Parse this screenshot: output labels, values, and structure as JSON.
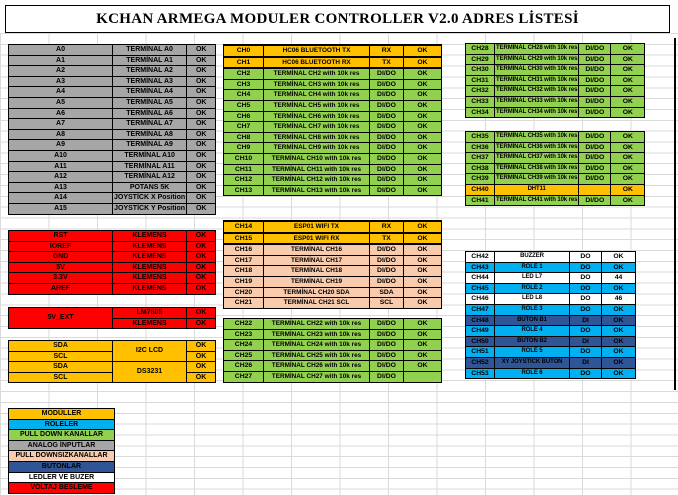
{
  "title": "KCHAN ARMEGA MODULER CONTROLLER V2.0 ADRES LİSTESİ",
  "colors": {
    "gray": "#A6A6A6",
    "green": "#92D050",
    "yellow": "#FFC000",
    "peach": "#F8CBAD",
    "blue": "#00B0F0",
    "darkblue": "#2F5597",
    "red": "#FF0000",
    "white": "#FFFFFF"
  },
  "tables": {
    "analog": {
      "rows": [
        {
          "color": "gray",
          "cells": [
            "A0",
            "TERMİNAL A0",
            "OK"
          ]
        },
        {
          "color": "gray",
          "cells": [
            "A1",
            "TERMİNAL A1",
            "OK"
          ]
        },
        {
          "color": "gray",
          "cells": [
            "A2",
            "TERMİNAL A2",
            "OK"
          ]
        },
        {
          "color": "gray",
          "cells": [
            "A3",
            "TERMİNAL A3",
            "OK"
          ]
        },
        {
          "color": "gray",
          "cells": [
            "A4",
            "TERMİNAL A4",
            "OK"
          ]
        },
        {
          "color": "gray",
          "cells": [
            "A5",
            "TERMİNAL A5",
            "OK"
          ]
        },
        {
          "color": "gray",
          "cells": [
            "A6",
            "TERMİNAL A6",
            "OK"
          ]
        },
        {
          "color": "gray",
          "cells": [
            "A7",
            "TERMİNAL A7",
            "OK"
          ]
        },
        {
          "color": "gray",
          "cells": [
            "A8",
            "TERMİNAL A8",
            "OK"
          ]
        },
        {
          "color": "gray",
          "cells": [
            "A9",
            "TERMİNAL A9",
            "OK"
          ]
        },
        {
          "color": "gray",
          "cells": [
            "A10",
            "TERMİNAL A10",
            "OK"
          ]
        },
        {
          "color": "gray",
          "cells": [
            "A11",
            "TERMİNAL A11",
            "OK"
          ]
        },
        {
          "color": "gray",
          "cells": [
            "A12",
            "TERMİNAL A12",
            "OK"
          ]
        },
        {
          "color": "gray",
          "cells": [
            "A13",
            "POTANS 5K",
            "OK"
          ]
        },
        {
          "color": "gray",
          "cells": [
            "A14",
            "JOYSTİCK X Position",
            "OK"
          ]
        },
        {
          "color": "gray",
          "cells": [
            "A15",
            "JOYSTİCK Y Position",
            "OK"
          ]
        }
      ]
    },
    "power1": {
      "rows": [
        {
          "color": "red",
          "cells": [
            "RST",
            "KLEMENS",
            "OK"
          ]
        },
        {
          "color": "red",
          "cells": [
            "IOREF",
            "KLEMENS",
            "OK"
          ]
        },
        {
          "color": "red",
          "cells": [
            "GND",
            "KLEMENS",
            "OK"
          ]
        },
        {
          "color": "red",
          "cells": [
            "5V",
            "KLEMENS",
            "OK"
          ]
        },
        {
          "color": "red",
          "cells": [
            "3.3V",
            "KLEMENS",
            "OK"
          ]
        },
        {
          "color": "red",
          "cells": [
            "AREF",
            "KLEMENS",
            "OK"
          ]
        }
      ]
    },
    "power2": {
      "rows": [
        {
          "color": "red",
          "cells": [
            {
              "t": "5V_EXT",
              "rs": 2
            },
            "LM7805",
            "OK"
          ]
        },
        {
          "color": "red",
          "cells": [
            "KLEMENS",
            "OK"
          ]
        }
      ]
    },
    "i2c": {
      "rows": [
        {
          "color": "yellow",
          "cells": [
            "SDA",
            {
              "t": "I2C LCD",
              "rs": 2
            },
            "OK"
          ]
        },
        {
          "color": "yellow",
          "cells": [
            "SCL",
            "OK"
          ]
        },
        {
          "color": "yellow",
          "cells": [
            "SDA",
            {
              "t": "DS3231",
              "rs": 2
            },
            "OK"
          ]
        },
        {
          "color": "yellow",
          "cells": [
            "SCL",
            "OK"
          ]
        }
      ]
    },
    "legend": {
      "rows": [
        {
          "color": "yellow",
          "cells": [
            "MODÜLLER"
          ]
        },
        {
          "color": "blue",
          "cells": [
            "RÖLELER"
          ]
        },
        {
          "color": "green",
          "cells": [
            "PULL DOWN KANALLAR"
          ]
        },
        {
          "color": "gray",
          "cells": [
            "ANALOG İNPUTLAR"
          ]
        },
        {
          "color": "peach",
          "cells": [
            "PULL DOWNSIZKANALLAR"
          ]
        },
        {
          "color": "darkblue",
          "cells": [
            "BUTONLAR"
          ]
        },
        {
          "color": "white",
          "cells": [
            "LEDLER  VE BUZER"
          ]
        },
        {
          "color": "red",
          "cells": [
            "VOLTAJ BESLEME"
          ]
        }
      ]
    },
    "mid1": {
      "rows": [
        {
          "color": "yellow",
          "thick": true,
          "cells": [
            "CH0",
            "HC06 BLUETOOTH TX",
            "RX",
            "OK"
          ]
        },
        {
          "color": "yellow",
          "thick": true,
          "cells": [
            "CH1",
            "HC06 BLUETOOTH RX",
            "TX",
            "OK"
          ]
        },
        {
          "color": "green",
          "cells": [
            "CH2",
            "TERMİNAL CH2 with 10k res",
            "DI/DO",
            "OK"
          ]
        },
        {
          "color": "green",
          "cells": [
            "CH3",
            "TERMİNAL CH3 with 10k res",
            "DI/DO",
            "OK"
          ]
        },
        {
          "color": "green",
          "cells": [
            "CH4",
            "TERMİNAL CH4 with 10k res",
            "DI/DO",
            "OK"
          ]
        },
        {
          "color": "green",
          "cells": [
            "CH5",
            "TERMİNAL CH5 with 10k res",
            "DI/DO",
            "OK"
          ]
        },
        {
          "color": "green",
          "cells": [
            "CH6",
            "TERMİNAL CH6 with 10k res",
            "DI/DO",
            "OK"
          ]
        },
        {
          "color": "green",
          "cells": [
            "CH7",
            "TERMİNAL CH7 with 10k res",
            "DI/DO",
            "OK"
          ]
        },
        {
          "color": "green",
          "cells": [
            "CH8",
            "TERMİNAL CH8 with 10k res",
            "DI/DO",
            "OK"
          ]
        },
        {
          "color": "green",
          "cells": [
            "CH9",
            "TERMİNAL CH9 with 10k res",
            "DI/DO",
            "OK"
          ]
        },
        {
          "color": "green",
          "cells": [
            "CH10",
            "TERMİNAL CH10 with 10k res",
            "DI/DO",
            "OK"
          ]
        },
        {
          "color": "green",
          "cells": [
            "CH11",
            "TERMİNAL CH11 with 10k res",
            "DI/DO",
            "OK"
          ]
        },
        {
          "color": "green",
          "cells": [
            "CH12",
            "TERMİNAL CH12 with 10k res",
            "DI/DO",
            "OK"
          ]
        },
        {
          "color": "green",
          "cells": [
            "CH13",
            "TERMİNAL CH13 with 10k res",
            "DI/DO",
            "OK"
          ]
        }
      ]
    },
    "mid2": {
      "rows": [
        {
          "color": "yellow",
          "thick": true,
          "cells": [
            "CH14",
            "ESP01 WIFI TX",
            "RX",
            "OK"
          ]
        },
        {
          "color": "yellow",
          "thick": true,
          "cells": [
            "CH15",
            "ESP01 WIFI RX",
            "TX",
            "OK"
          ]
        },
        {
          "color": "peach",
          "cells": [
            "CH16",
            "TERMİNAL CH16",
            "DI/DO",
            "OK"
          ]
        },
        {
          "color": "peach",
          "cells": [
            "CH17",
            "TERMİNAL CH17",
            "DI/DO",
            "OK"
          ]
        },
        {
          "color": "peach",
          "cells": [
            "CH18",
            "TERMİNAL CH18",
            "DI/DO",
            "OK"
          ]
        },
        {
          "color": "peach",
          "cells": [
            "CH19",
            "TERMİNAL CH19",
            "DI/DO",
            "OK"
          ]
        },
        {
          "color": "peach",
          "cells": [
            "CH20",
            "TERMİNAL CH20 SDA",
            "SDA",
            "OK"
          ]
        },
        {
          "color": "peach",
          "cells": [
            "CH21",
            "TERMİNAL CH21 SCL",
            "SCL",
            "OK"
          ]
        }
      ]
    },
    "mid3": {
      "rows": [
        {
          "color": "green",
          "cells": [
            "CH22",
            "TERMİNAL CH22 with 10k res",
            "DI/DO",
            "OK"
          ]
        },
        {
          "color": "green",
          "cells": [
            "CH23",
            "TERMİNAL CH23 with 10k res",
            "DI/DO",
            "OK"
          ]
        },
        {
          "color": "green",
          "cells": [
            "CH24",
            "TERMİNAL CH24 with 10k res",
            "DI/DO",
            "OK"
          ]
        },
        {
          "color": "green",
          "cells": [
            "CH25",
            "TERMİNAL CH25 with 10k res",
            "DI/DO",
            "OK"
          ]
        },
        {
          "color": "green",
          "cells": [
            "CH26",
            "TERMİNAL CH26 with 10k res",
            "DI/DO",
            "OK"
          ]
        },
        {
          "color": "green",
          "cells": [
            "CH27",
            "TERMİNAL CH27 with 10k res",
            "DI/DO",
            ""
          ]
        }
      ]
    },
    "right1": {
      "rows": [
        {
          "color": "green",
          "cells": [
            "CH28",
            "TERMİNAL CH28 with 10k res",
            "DI/DO",
            "OK"
          ]
        },
        {
          "color": "green",
          "cells": [
            "CH29",
            "TERMİNAL CH29 with 10k res",
            "DI/DO",
            "OK"
          ]
        },
        {
          "color": "green",
          "cells": [
            "CH30",
            "TERMİNAL CH30 with 10k res",
            "DI/DO",
            "OK"
          ]
        },
        {
          "color": "green",
          "cells": [
            "CH31",
            "TERMİNAL CH31 with 10k res",
            "DI/DO",
            "OK"
          ]
        },
        {
          "color": "green",
          "cells": [
            "CH32",
            "TERMİNAL CH32 with 10k res",
            "DI/DO",
            "OK"
          ]
        },
        {
          "color": "green",
          "cells": [
            "CH33",
            "TERMİNAL CH33 with 10k res",
            "DI/DO",
            "OK"
          ]
        },
        {
          "color": "green",
          "cells": [
            "CH34",
            "TERMİNAL CH34 with 10k res",
            "DI/DO",
            "OK"
          ]
        }
      ]
    },
    "right2": {
      "rows": [
        {
          "color": "green",
          "cells": [
            "CH35",
            "TERMİNAL CH35 with 10k res",
            "DI/DO",
            "OK"
          ]
        },
        {
          "color": "green",
          "cells": [
            "CH36",
            "TERMİNAL CH36 with 10k res",
            "DI/DO",
            "OK"
          ]
        },
        {
          "color": "green",
          "cells": [
            "CH37",
            "TERMİNAL CH37 with 10k res",
            "DI/DO",
            "OK"
          ]
        },
        {
          "color": "green",
          "cells": [
            "CH38",
            "TERMİNAL CH38 with 10k res",
            "DI/DO",
            "OK"
          ]
        },
        {
          "color": "green",
          "cells": [
            "CH39",
            "TERMİNAL CH39 with 10k res",
            "DI/DO",
            "OK"
          ]
        },
        {
          "color": "yellow",
          "cells": [
            "CH40",
            "DHT11",
            "",
            "OK"
          ]
        },
        {
          "color": "green",
          "cells": [
            "CH41",
            "TERMİNAL CH41 with 10k res",
            "DI/DO",
            "OK"
          ]
        }
      ]
    },
    "right3": {
      "rows": [
        {
          "color": "white",
          "cells": [
            "CH42",
            "BUZZER",
            "DO",
            "OK"
          ]
        },
        {
          "color": "blue",
          "cells": [
            "CH43",
            "RÖLE 1",
            "DO",
            "OK"
          ]
        },
        {
          "color": "white",
          "cells": [
            "CH44",
            "LED L7",
            "DO",
            "44"
          ]
        },
        {
          "color": "blue",
          "cells": [
            "CH45",
            "RÖLE 2",
            "DO",
            "OK"
          ]
        },
        {
          "color": "white",
          "cells": [
            "CH46",
            "LED L8",
            "DO",
            "46"
          ]
        },
        {
          "color": "blue",
          "cells": [
            "CH47",
            "RÖLE 3",
            "DO",
            "OK"
          ]
        },
        {
          "color": "darkblue",
          "cells": [
            "CH48",
            "BUTON B1",
            "DI",
            "OK"
          ]
        },
        {
          "color": "blue",
          "cells": [
            "CH49",
            "RÖLE 4",
            "DO",
            "OK"
          ]
        },
        {
          "color": "darkblue",
          "cells": [
            "CH50",
            "BUTON B2",
            "DI",
            "OK"
          ]
        },
        {
          "color": "blue",
          "cells": [
            "CH51",
            "RÖLE 5",
            "DO",
            "OK"
          ]
        },
        {
          "color": "darkblue",
          "cells": [
            "CH52",
            "XY JOYSTICK BUTON",
            "DI",
            "OK"
          ]
        },
        {
          "color": "blue",
          "cells": [
            "CH53",
            "RÖLE 6",
            "DO",
            "OK"
          ]
        }
      ]
    }
  }
}
